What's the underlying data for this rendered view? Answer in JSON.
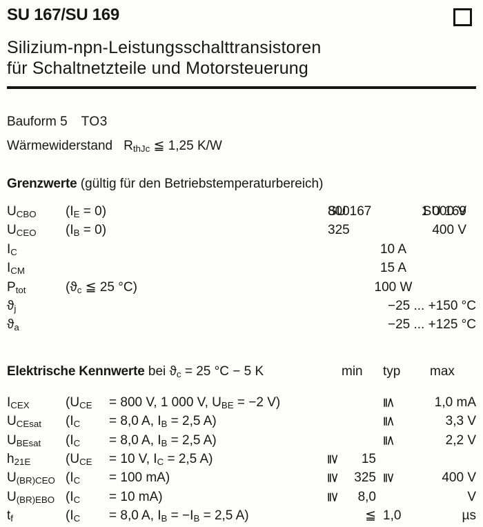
{
  "header": {
    "title": "SU 167/SU 169",
    "corner_box_icon": "empty-square",
    "subtitle_line1": "Silizium-npn-Leistungsschalttransistoren",
    "subtitle_line2": "für Schaltnetzteile und Motorsteuerung"
  },
  "info": {
    "bauform_label": "Bauform 5",
    "bauform_value": "TO3",
    "thermal_label": "Wärmewiderstand",
    "thermal_value": "R_{thJc} ≦ 1,25 K/W"
  },
  "grenzwerte": {
    "heading_bold": "Grenzwerte",
    "heading_rest": " (gültig für den Betriebstemperaturbereich)",
    "col_headers": {
      "su167": "SU 167",
      "su169": "SU 169"
    },
    "rows": [
      {
        "sym": "U_{CBO}",
        "cond": "(I_{E} = 0)",
        "v167": "800",
        "v169": "1 000 V",
        "span_center": "",
        "span_right": ""
      },
      {
        "sym": "U_{CEO}",
        "cond": "(I_{B} = 0)",
        "v167": "325",
        "v169": "400 V",
        "span_center": "",
        "span_right": ""
      },
      {
        "sym": "I_{C}",
        "cond": "",
        "v167": "",
        "v169": "",
        "span_center": "10 A",
        "span_right": ""
      },
      {
        "sym": "I_{CM}",
        "cond": "",
        "v167": "",
        "v169": "",
        "span_center": "15 A",
        "span_right": ""
      },
      {
        "sym": "P_{tot}",
        "cond": "(ϑ_{c} ≦ 25 °C)",
        "v167": "",
        "v169": "",
        "span_center": "100 W",
        "span_right": ""
      },
      {
        "sym": "ϑ_{j}",
        "cond": "",
        "v167": "",
        "v169": "",
        "span_center": "",
        "span_right": "−25 ... +150 °C"
      },
      {
        "sym": "ϑ_{a}",
        "cond": "",
        "v167": "",
        "v169": "",
        "span_center": "",
        "span_right": "−25 ... +125 °C"
      }
    ]
  },
  "kennwerte": {
    "heading_bold": "Elektrische Kennwerte",
    "heading_rest": "bei ϑ_{c} = 25 °C − 5 K",
    "col_headers": {
      "min": "min",
      "typ": "typ",
      "max": "max"
    },
    "rows": [
      {
        "sym": "I_{CEX}",
        "cond_var": "(U_{CE}",
        "cond_rest": "= 800 V, 1 000 V, U_{BE} = −2 V)",
        "min_sym": "",
        "min": "",
        "typ": "*{≦}",
        "max": "1,0 mA"
      },
      {
        "sym": "U_{CEsat}",
        "cond_var": "(I_{C}",
        "cond_rest": "= 8,0 A, I_{B} = 2,5 A)",
        "min_sym": "",
        "min": "",
        "typ": "*{≦}",
        "max": "3,3 V"
      },
      {
        "sym": "U_{BEsat}",
        "cond_var": "(I_{C}",
        "cond_rest": "= 8,0 A, I_{B} = 2,5 A)",
        "min_sym": "",
        "min": "",
        "typ": "*{≦}",
        "max": "2,2 V"
      },
      {
        "sym": "h_{21E}",
        "cond_var": "(U_{CE}",
        "cond_rest": "= 10 V, I_{C} = 2,5 A)",
        "min_sym": "*{≧}",
        "min": "15",
        "typ": "",
        "max": ""
      },
      {
        "sym": "U_{(BR)CEO}",
        "cond_var": "(I_{C}",
        "cond_rest": "= 100 mA)",
        "min_sym": "*{≧}",
        "min": "325",
        "typ": "*{≧}",
        "max": "400 V"
      },
      {
        "sym": "U_{(BR)EBO}",
        "cond_var": "(I_{C}",
        "cond_rest": "= 10 mA)",
        "min_sym": "*{≧}",
        "min": "8,0",
        "typ": "",
        "max": "V"
      },
      {
        "sym": "t_{f}",
        "cond_var": "(I_{C}",
        "cond_rest": "= 8,0 A, I_{B} = −I_{B} = 2,5 A)",
        "min_sym": "",
        "min": "≦",
        "typ": "1,0",
        "max": "µs"
      }
    ]
  }
}
